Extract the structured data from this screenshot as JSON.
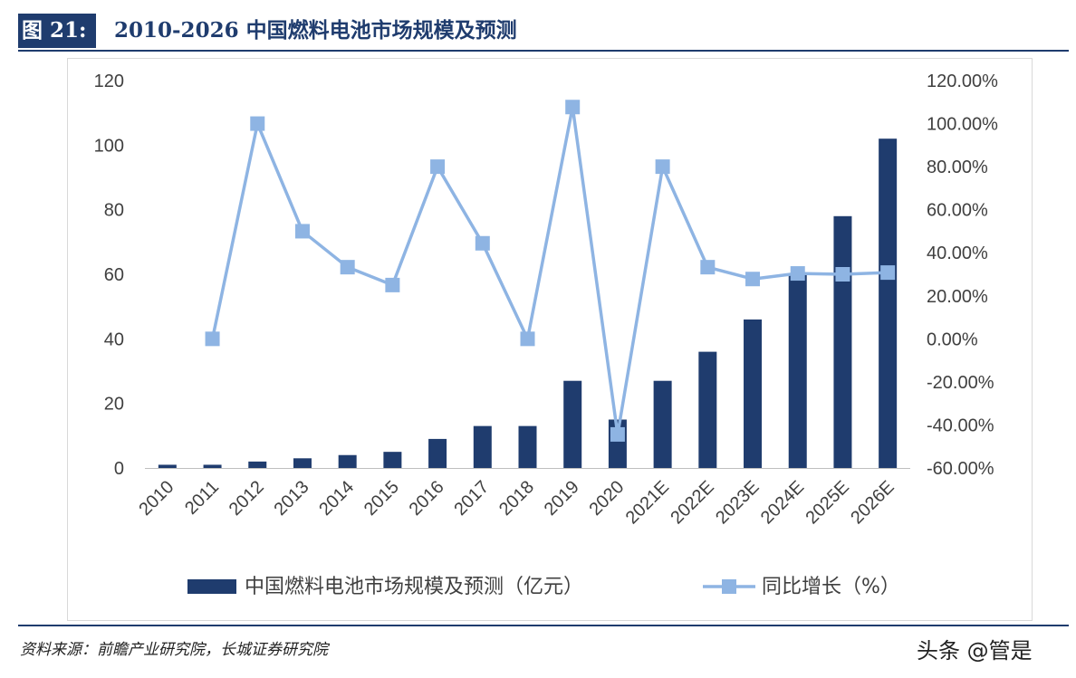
{
  "header": {
    "figure_label": "图 21:",
    "title": "2010-2026 中国燃料电池市场规模及预测"
  },
  "footer": {
    "source": "资料来源：前瞻产业研究院，长城证券研究院",
    "watermark": "头条 @管是"
  },
  "colors": {
    "bar": "#1f3c6e",
    "line": "#8eb4e3",
    "header": "#1f3c6e"
  },
  "chart_data": {
    "type": "bar",
    "title": "",
    "categories": [
      "2010",
      "2011",
      "2012",
      "2013",
      "2014",
      "2015",
      "2016",
      "2017",
      "2018",
      "2019",
      "2020",
      "2021E",
      "2022E",
      "2023E",
      "2024E",
      "2025E",
      "2026E"
    ],
    "series": [
      {
        "name": "中国燃料电池市场规模及预测（亿元）",
        "type": "bar",
        "axis": "left",
        "values": [
          1,
          1,
          2,
          3,
          4,
          5,
          9,
          13,
          13,
          27,
          15,
          27,
          36,
          46,
          60,
          78,
          102
        ]
      },
      {
        "name": "同比增长（%）",
        "type": "line",
        "axis": "right",
        "values": [
          null,
          0,
          100,
          50,
          33.3,
          25,
          80,
          44.4,
          0,
          107.7,
          -44.4,
          80,
          33.3,
          27.8,
          30.4,
          30,
          30.8
        ]
      }
    ],
    "y_left": {
      "min": 0,
      "max": 120,
      "ticks": [
        "0",
        "20",
        "40",
        "60",
        "80",
        "100",
        "120"
      ]
    },
    "y_right": {
      "min": -60,
      "max": 120,
      "ticks": [
        "-60.00%",
        "-40.00%",
        "-20.00%",
        "0.00%",
        "20.00%",
        "40.00%",
        "60.00%",
        "80.00%",
        "100.00%",
        "120.00%"
      ]
    },
    "grid": false,
    "legend_position": "bottom"
  }
}
